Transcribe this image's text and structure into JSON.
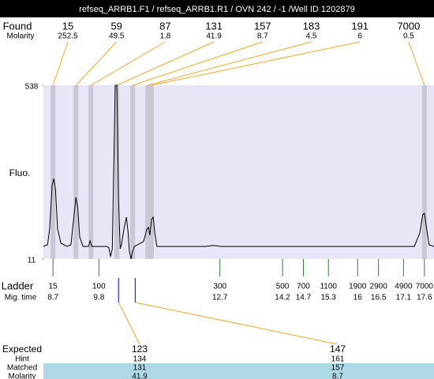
{
  "chart_data": {
    "type": "line",
    "title": "refseq_ARRB1.F1 / refseq_ARRB1.R1 / OVN 242 / -1 /Well ID 1202879",
    "ylabel": "Fluo.",
    "ylim": [
      11,
      538
    ],
    "yticks": [
      11,
      538
    ],
    "xlim": [
      8.47,
      17.83
    ],
    "color": "#000000",
    "x": [
      8.47,
      8.57,
      8.62,
      8.68,
      8.72,
      8.76,
      8.81,
      8.89,
      9.04,
      9.13,
      9.21,
      9.25,
      9.29,
      9.34,
      9.42,
      9.55,
      9.59,
      9.63,
      9.99,
      10.04,
      10.08,
      10.12,
      10.16,
      10.19,
      10.23,
      10.27,
      10.31,
      10.34,
      10.4,
      10.46,
      10.5,
      10.53,
      10.57,
      10.61,
      10.65,
      10.87,
      10.95,
      10.99,
      11.02,
      11.06,
      11.1,
      11.14,
      11.19,
      12.35,
      12.54,
      12.73,
      17.36,
      17.49,
      17.56,
      17.6,
      17.64,
      17.71,
      17.83
    ],
    "values": [
      49,
      54,
      102,
      234,
      255,
      222,
      102,
      59,
      49,
      54,
      150,
      198,
      169,
      78,
      49,
      49,
      66,
      49,
      49,
      45,
      18,
      42,
      318,
      538,
      538,
      198,
      42,
      54,
      102,
      138,
      90,
      35,
      11,
      35,
      49,
      64,
      102,
      107,
      83,
      131,
      138,
      90,
      49,
      49,
      52,
      49,
      49,
      90,
      145,
      150,
      114,
      54,
      49
    ],
    "found": {
      "label": "Found",
      "sublabel": "Molarity",
      "sizes": [
        15,
        59,
        87,
        131,
        157,
        183,
        191,
        7000
      ],
      "molarity": [
        252.5,
        49.5,
        1.8,
        41.9,
        8.7,
        4.5,
        6,
        0.5
      ],
      "times": [
        8.7,
        9.25,
        9.61,
        10.23,
        10.61,
        10.97,
        11.06,
        17.6
      ]
    },
    "ladder": {
      "label": "Ladder",
      "sublabel": "Mig. time",
      "sizes": [
        15,
        100,
        300,
        500,
        700,
        1100,
        1900,
        2900,
        4900,
        7000
      ],
      "times": [
        8.7,
        9.8,
        12.7,
        14.2,
        14.7,
        15.3,
        16,
        16.5,
        17.1,
        17.6
      ]
    },
    "expected": {
      "label": "Expected",
      "row_labels": [
        "Hint",
        "Matched",
        "Molarity"
      ],
      "sizes": [
        123,
        147
      ],
      "hint": [
        134,
        161
      ],
      "matched": [
        131,
        157
      ],
      "molarity": [
        41.9,
        8.7
      ],
      "times": [
        10.27,
        10.67
      ]
    }
  }
}
